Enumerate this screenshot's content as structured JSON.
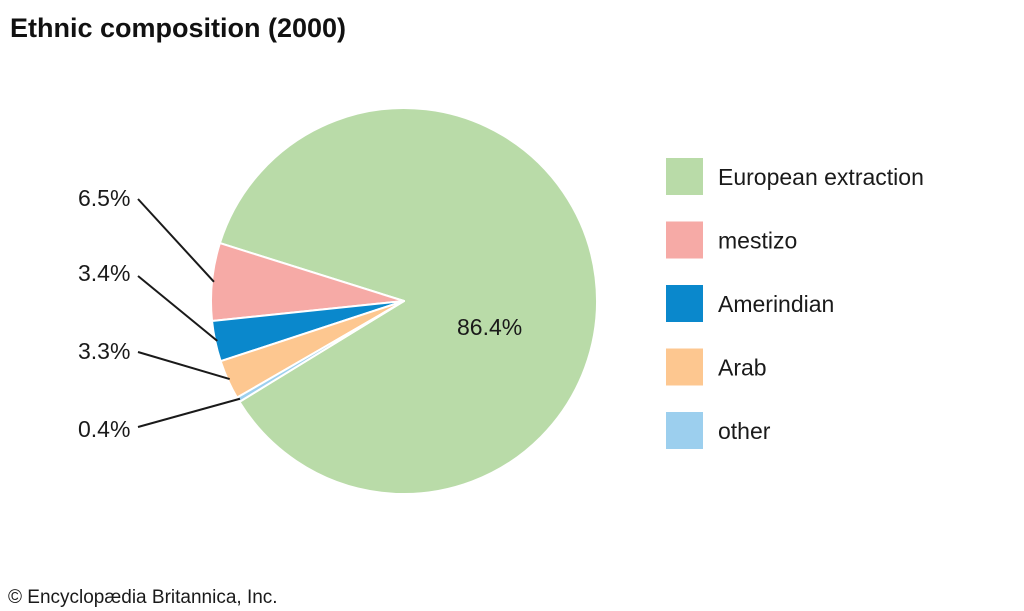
{
  "chart_data": {
    "type": "pie",
    "title": "Ethnic composition (2000)",
    "categories": [
      "European extraction",
      "mestizo",
      "Amerindian",
      "Arab",
      "other"
    ],
    "values": [
      86.4,
      6.5,
      3.4,
      3.3,
      0.4
    ],
    "value_labels": [
      "86.4%",
      "6.5%",
      "3.4%",
      "3.3%",
      "0.4%"
    ],
    "colors": [
      "#b9dba8",
      "#f6aaa6",
      "#0a88cc",
      "#fdc790",
      "#9ccfee"
    ],
    "legend_position": "right",
    "start_angle_deg": 211.5,
    "direction": "counterclockwise"
  },
  "credit": "© Encyclopædia Britannica, Inc."
}
